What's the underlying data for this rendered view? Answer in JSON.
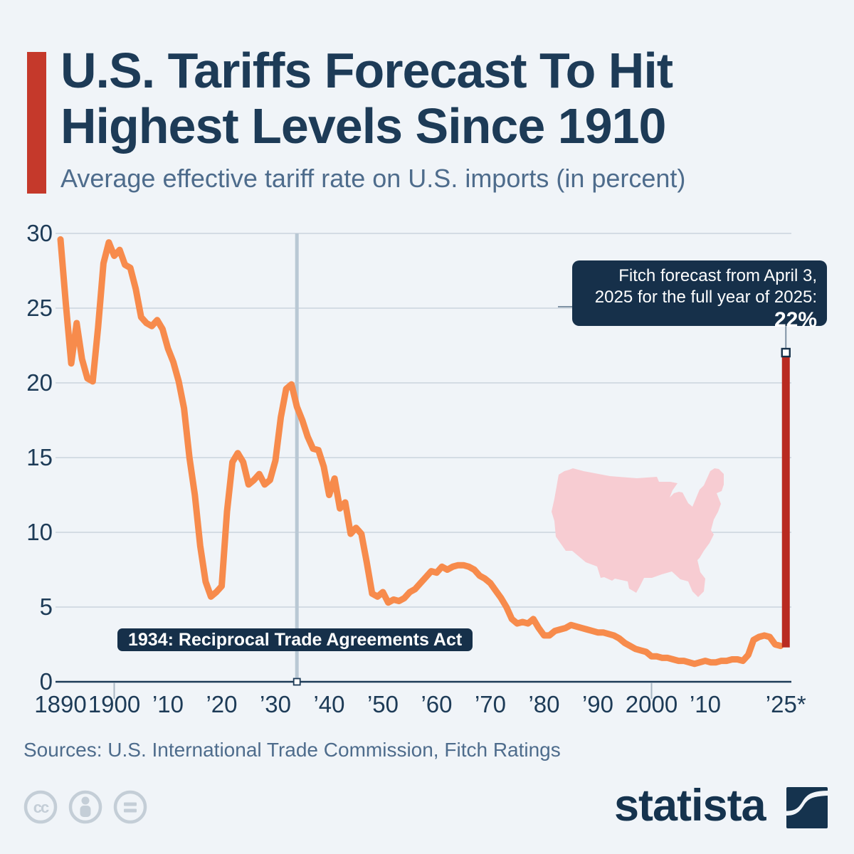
{
  "header": {
    "title_lines": [
      "U.S. Tariffs Forecast To Hit",
      "Highest Levels Since 1910"
    ],
    "subtitle": "Average effective tariff rate on U.S. imports (in percent)",
    "accent_color": "#c5392b"
  },
  "chart_data": {
    "type": "line",
    "title": "Average effective tariff rate on U.S. imports (in percent)",
    "unit": "percent",
    "xlim": [
      1890,
      2026
    ],
    "ylim": [
      0,
      30
    ],
    "grid": "horizontal",
    "y_ticks": [
      0,
      5,
      10,
      15,
      20,
      25,
      30
    ],
    "x_ticks": [
      {
        "year": 1890,
        "label": "1890"
      },
      {
        "year": 1900,
        "label": "1900"
      },
      {
        "year": 1910,
        "label": "’10"
      },
      {
        "year": 1920,
        "label": "’20"
      },
      {
        "year": 1930,
        "label": "’30"
      },
      {
        "year": 1940,
        "label": "’40"
      },
      {
        "year": 1950,
        "label": "’50"
      },
      {
        "year": 1960,
        "label": "’60"
      },
      {
        "year": 1970,
        "label": "’70"
      },
      {
        "year": 1980,
        "label": "’80"
      },
      {
        "year": 1990,
        "label": "’90"
      },
      {
        "year": 2000,
        "label": "2000"
      },
      {
        "year": 2010,
        "label": "’10"
      },
      {
        "year": 2025,
        "label": "’25*"
      }
    ],
    "tick_marked_years": [
      1900,
      2000
    ],
    "series": [
      {
        "name": "Average effective tariff rate on U.S. imports",
        "color": "#f78b4c",
        "points": [
          [
            1890,
            29.6
          ],
          [
            1891,
            25.3
          ],
          [
            1892,
            21.3
          ],
          [
            1893,
            24.0
          ],
          [
            1894,
            21.6
          ],
          [
            1895,
            20.3
          ],
          [
            1896,
            20.1
          ],
          [
            1897,
            23.7
          ],
          [
            1898,
            28.0
          ],
          [
            1899,
            29.4
          ],
          [
            1900,
            28.5
          ],
          [
            1901,
            28.9
          ],
          [
            1902,
            27.9
          ],
          [
            1903,
            27.7
          ],
          [
            1904,
            26.3
          ],
          [
            1905,
            24.4
          ],
          [
            1906,
            24.0
          ],
          [
            1907,
            23.8
          ],
          [
            1908,
            24.2
          ],
          [
            1909,
            23.6
          ],
          [
            1910,
            22.3
          ],
          [
            1911,
            21.4
          ],
          [
            1912,
            20.1
          ],
          [
            1913,
            18.3
          ],
          [
            1914,
            15.0
          ],
          [
            1915,
            12.5
          ],
          [
            1916,
            9.1
          ],
          [
            1917,
            6.7
          ],
          [
            1918,
            5.7
          ],
          [
            1919,
            6.0
          ],
          [
            1920,
            6.4
          ],
          [
            1921,
            11.4
          ],
          [
            1922,
            14.7
          ],
          [
            1923,
            15.3
          ],
          [
            1924,
            14.7
          ],
          [
            1925,
            13.2
          ],
          [
            1926,
            13.5
          ],
          [
            1927,
            13.9
          ],
          [
            1928,
            13.2
          ],
          [
            1929,
            13.5
          ],
          [
            1930,
            14.8
          ],
          [
            1931,
            17.7
          ],
          [
            1932,
            19.6
          ],
          [
            1933,
            19.9
          ],
          [
            1934,
            18.4
          ],
          [
            1935,
            17.5
          ],
          [
            1936,
            16.4
          ],
          [
            1937,
            15.6
          ],
          [
            1938,
            15.5
          ],
          [
            1939,
            14.4
          ],
          [
            1940,
            12.5
          ],
          [
            1941,
            13.6
          ],
          [
            1942,
            11.6
          ],
          [
            1943,
            12.0
          ],
          [
            1944,
            9.9
          ],
          [
            1945,
            10.3
          ],
          [
            1946,
            9.9
          ],
          [
            1947,
            8.0
          ],
          [
            1948,
            5.9
          ],
          [
            1949,
            5.7
          ],
          [
            1950,
            6.0
          ],
          [
            1951,
            5.3
          ],
          [
            1952,
            5.5
          ],
          [
            1953,
            5.4
          ],
          [
            1954,
            5.6
          ],
          [
            1955,
            6.0
          ],
          [
            1956,
            6.2
          ],
          [
            1957,
            6.6
          ],
          [
            1958,
            7.0
          ],
          [
            1959,
            7.4
          ],
          [
            1960,
            7.3
          ],
          [
            1961,
            7.7
          ],
          [
            1962,
            7.5
          ],
          [
            1963,
            7.7
          ],
          [
            1964,
            7.8
          ],
          [
            1965,
            7.8
          ],
          [
            1966,
            7.7
          ],
          [
            1967,
            7.5
          ],
          [
            1968,
            7.1
          ],
          [
            1969,
            6.9
          ],
          [
            1970,
            6.6
          ],
          [
            1971,
            6.1
          ],
          [
            1972,
            5.6
          ],
          [
            1973,
            5.0
          ],
          [
            1974,
            4.2
          ],
          [
            1975,
            3.9
          ],
          [
            1976,
            4.0
          ],
          [
            1977,
            3.9
          ],
          [
            1978,
            4.2
          ],
          [
            1979,
            3.6
          ],
          [
            1980,
            3.1
          ],
          [
            1981,
            3.1
          ],
          [
            1982,
            3.4
          ],
          [
            1983,
            3.5
          ],
          [
            1984,
            3.6
          ],
          [
            1985,
            3.8
          ],
          [
            1986,
            3.7
          ],
          [
            1987,
            3.6
          ],
          [
            1988,
            3.5
          ],
          [
            1989,
            3.4
          ],
          [
            1990,
            3.3
          ],
          [
            1991,
            3.3
          ],
          [
            1992,
            3.2
          ],
          [
            1993,
            3.1
          ],
          [
            1994,
            2.9
          ],
          [
            1995,
            2.6
          ],
          [
            1996,
            2.4
          ],
          [
            1997,
            2.2
          ],
          [
            1998,
            2.1
          ],
          [
            1999,
            2.0
          ],
          [
            2000,
            1.7
          ],
          [
            2001,
            1.7
          ],
          [
            2002,
            1.6
          ],
          [
            2003,
            1.6
          ],
          [
            2004,
            1.5
          ],
          [
            2005,
            1.4
          ],
          [
            2006,
            1.4
          ],
          [
            2007,
            1.3
          ],
          [
            2008,
            1.2
          ],
          [
            2009,
            1.3
          ],
          [
            2010,
            1.4
          ],
          [
            2011,
            1.3
          ],
          [
            2012,
            1.3
          ],
          [
            2013,
            1.4
          ],
          [
            2014,
            1.4
          ],
          [
            2015,
            1.5
          ],
          [
            2016,
            1.5
          ],
          [
            2017,
            1.4
          ],
          [
            2018,
            1.8
          ],
          [
            2019,
            2.8
          ],
          [
            2020,
            3.0
          ],
          [
            2021,
            3.1
          ],
          [
            2022,
            3.0
          ],
          [
            2023,
            2.5
          ],
          [
            2024,
            2.4
          ]
        ]
      }
    ],
    "forecast_bar": {
      "year": 2025,
      "value": 22,
      "base": 2.3,
      "color": "#b92a21"
    },
    "annotations": {
      "forecast_note": {
        "lines": [
          "Fitch forecast from April 3,",
          "2025 for the full year of 2025:"
        ],
        "value_label": "22%"
      },
      "event_1934": {
        "label": "1934: Reciprocal Trade Agreements Act",
        "year": 1934
      }
    }
  },
  "footer": {
    "sources": "Sources: U.S. International Trade Commission, Fitch Ratings",
    "license_icons": [
      "cc",
      "attribution",
      "no-derivatives"
    ],
    "brand": "statista"
  }
}
